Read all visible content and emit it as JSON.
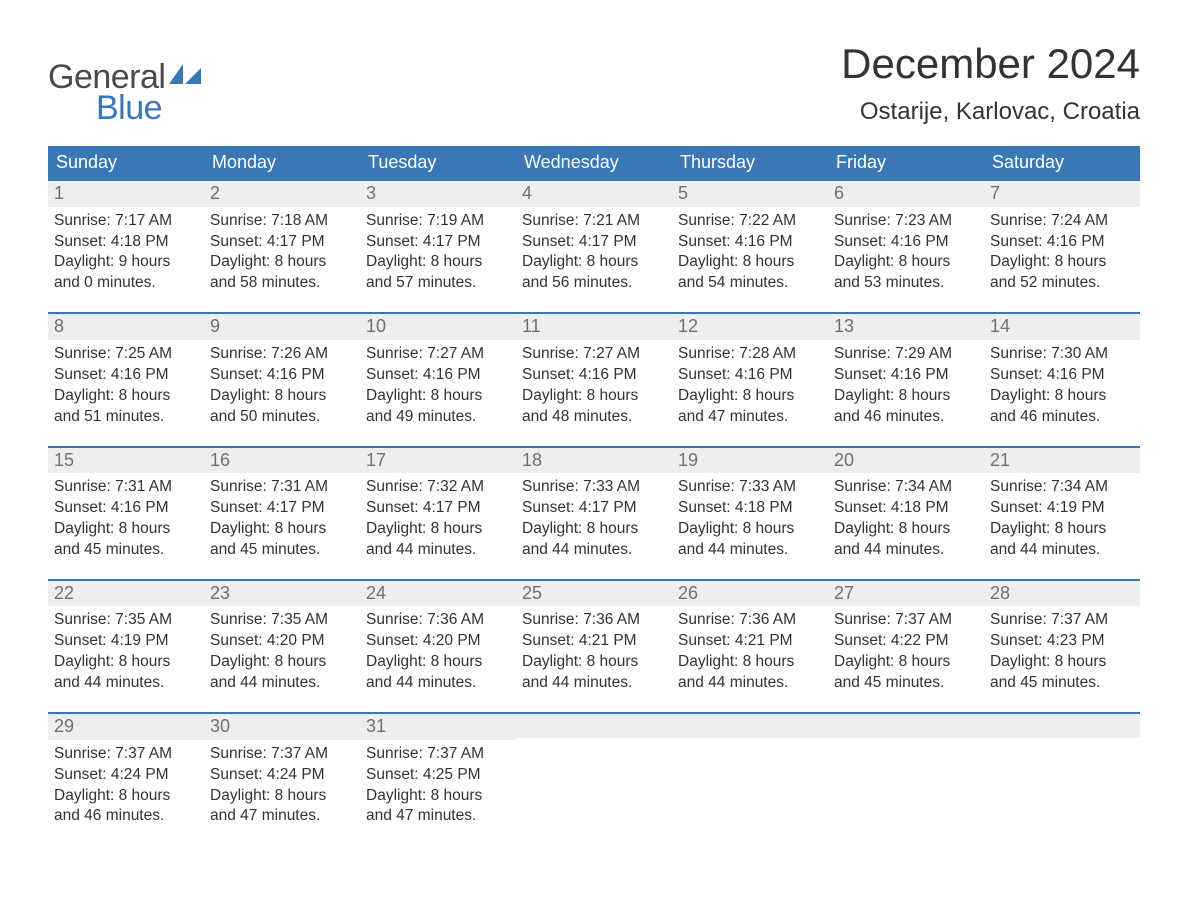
{
  "brand": {
    "word1": "General",
    "word2": "Blue",
    "color_word1": "#4a4a4a",
    "color_word2": "#3a78b5"
  },
  "title": "December 2024",
  "location": "Ostarije, Karlovac, Croatia",
  "colors": {
    "header_bg": "#3a78b5",
    "header_text": "#ffffff",
    "daynum_bg": "#eeeeee",
    "daynum_border": "#3a78b5",
    "daynum_text": "#707070",
    "body_text": "#333333",
    "page_bg": "#ffffff"
  },
  "typography": {
    "title_fontsize": 42,
    "location_fontsize": 24,
    "dayhead_fontsize": 18,
    "daynum_fontsize": 18,
    "body_fontsize": 15.5,
    "font_family": "Arial"
  },
  "day_headers": [
    "Sunday",
    "Monday",
    "Tuesday",
    "Wednesday",
    "Thursday",
    "Friday",
    "Saturday"
  ],
  "weeks": [
    [
      {
        "num": "1",
        "sunrise": "Sunrise: 7:17 AM",
        "sunset": "Sunset: 4:18 PM",
        "dl1": "Daylight: 9 hours",
        "dl2": "and 0 minutes."
      },
      {
        "num": "2",
        "sunrise": "Sunrise: 7:18 AM",
        "sunset": "Sunset: 4:17 PM",
        "dl1": "Daylight: 8 hours",
        "dl2": "and 58 minutes."
      },
      {
        "num": "3",
        "sunrise": "Sunrise: 7:19 AM",
        "sunset": "Sunset: 4:17 PM",
        "dl1": "Daylight: 8 hours",
        "dl2": "and 57 minutes."
      },
      {
        "num": "4",
        "sunrise": "Sunrise: 7:21 AM",
        "sunset": "Sunset: 4:17 PM",
        "dl1": "Daylight: 8 hours",
        "dl2": "and 56 minutes."
      },
      {
        "num": "5",
        "sunrise": "Sunrise: 7:22 AM",
        "sunset": "Sunset: 4:16 PM",
        "dl1": "Daylight: 8 hours",
        "dl2": "and 54 minutes."
      },
      {
        "num": "6",
        "sunrise": "Sunrise: 7:23 AM",
        "sunset": "Sunset: 4:16 PM",
        "dl1": "Daylight: 8 hours",
        "dl2": "and 53 minutes."
      },
      {
        "num": "7",
        "sunrise": "Sunrise: 7:24 AM",
        "sunset": "Sunset: 4:16 PM",
        "dl1": "Daylight: 8 hours",
        "dl2": "and 52 minutes."
      }
    ],
    [
      {
        "num": "8",
        "sunrise": "Sunrise: 7:25 AM",
        "sunset": "Sunset: 4:16 PM",
        "dl1": "Daylight: 8 hours",
        "dl2": "and 51 minutes."
      },
      {
        "num": "9",
        "sunrise": "Sunrise: 7:26 AM",
        "sunset": "Sunset: 4:16 PM",
        "dl1": "Daylight: 8 hours",
        "dl2": "and 50 minutes."
      },
      {
        "num": "10",
        "sunrise": "Sunrise: 7:27 AM",
        "sunset": "Sunset: 4:16 PM",
        "dl1": "Daylight: 8 hours",
        "dl2": "and 49 minutes."
      },
      {
        "num": "11",
        "sunrise": "Sunrise: 7:27 AM",
        "sunset": "Sunset: 4:16 PM",
        "dl1": "Daylight: 8 hours",
        "dl2": "and 48 minutes."
      },
      {
        "num": "12",
        "sunrise": "Sunrise: 7:28 AM",
        "sunset": "Sunset: 4:16 PM",
        "dl1": "Daylight: 8 hours",
        "dl2": "and 47 minutes."
      },
      {
        "num": "13",
        "sunrise": "Sunrise: 7:29 AM",
        "sunset": "Sunset: 4:16 PM",
        "dl1": "Daylight: 8 hours",
        "dl2": "and 46 minutes."
      },
      {
        "num": "14",
        "sunrise": "Sunrise: 7:30 AM",
        "sunset": "Sunset: 4:16 PM",
        "dl1": "Daylight: 8 hours",
        "dl2": "and 46 minutes."
      }
    ],
    [
      {
        "num": "15",
        "sunrise": "Sunrise: 7:31 AM",
        "sunset": "Sunset: 4:16 PM",
        "dl1": "Daylight: 8 hours",
        "dl2": "and 45 minutes."
      },
      {
        "num": "16",
        "sunrise": "Sunrise: 7:31 AM",
        "sunset": "Sunset: 4:17 PM",
        "dl1": "Daylight: 8 hours",
        "dl2": "and 45 minutes."
      },
      {
        "num": "17",
        "sunrise": "Sunrise: 7:32 AM",
        "sunset": "Sunset: 4:17 PM",
        "dl1": "Daylight: 8 hours",
        "dl2": "and 44 minutes."
      },
      {
        "num": "18",
        "sunrise": "Sunrise: 7:33 AM",
        "sunset": "Sunset: 4:17 PM",
        "dl1": "Daylight: 8 hours",
        "dl2": "and 44 minutes."
      },
      {
        "num": "19",
        "sunrise": "Sunrise: 7:33 AM",
        "sunset": "Sunset: 4:18 PM",
        "dl1": "Daylight: 8 hours",
        "dl2": "and 44 minutes."
      },
      {
        "num": "20",
        "sunrise": "Sunrise: 7:34 AM",
        "sunset": "Sunset: 4:18 PM",
        "dl1": "Daylight: 8 hours",
        "dl2": "and 44 minutes."
      },
      {
        "num": "21",
        "sunrise": "Sunrise: 7:34 AM",
        "sunset": "Sunset: 4:19 PM",
        "dl1": "Daylight: 8 hours",
        "dl2": "and 44 minutes."
      }
    ],
    [
      {
        "num": "22",
        "sunrise": "Sunrise: 7:35 AM",
        "sunset": "Sunset: 4:19 PM",
        "dl1": "Daylight: 8 hours",
        "dl2": "and 44 minutes."
      },
      {
        "num": "23",
        "sunrise": "Sunrise: 7:35 AM",
        "sunset": "Sunset: 4:20 PM",
        "dl1": "Daylight: 8 hours",
        "dl2": "and 44 minutes."
      },
      {
        "num": "24",
        "sunrise": "Sunrise: 7:36 AM",
        "sunset": "Sunset: 4:20 PM",
        "dl1": "Daylight: 8 hours",
        "dl2": "and 44 minutes."
      },
      {
        "num": "25",
        "sunrise": "Sunrise: 7:36 AM",
        "sunset": "Sunset: 4:21 PM",
        "dl1": "Daylight: 8 hours",
        "dl2": "and 44 minutes."
      },
      {
        "num": "26",
        "sunrise": "Sunrise: 7:36 AM",
        "sunset": "Sunset: 4:21 PM",
        "dl1": "Daylight: 8 hours",
        "dl2": "and 44 minutes."
      },
      {
        "num": "27",
        "sunrise": "Sunrise: 7:37 AM",
        "sunset": "Sunset: 4:22 PM",
        "dl1": "Daylight: 8 hours",
        "dl2": "and 45 minutes."
      },
      {
        "num": "28",
        "sunrise": "Sunrise: 7:37 AM",
        "sunset": "Sunset: 4:23 PM",
        "dl1": "Daylight: 8 hours",
        "dl2": "and 45 minutes."
      }
    ],
    [
      {
        "num": "29",
        "sunrise": "Sunrise: 7:37 AM",
        "sunset": "Sunset: 4:24 PM",
        "dl1": "Daylight: 8 hours",
        "dl2": "and 46 minutes."
      },
      {
        "num": "30",
        "sunrise": "Sunrise: 7:37 AM",
        "sunset": "Sunset: 4:24 PM",
        "dl1": "Daylight: 8 hours",
        "dl2": "and 47 minutes."
      },
      {
        "num": "31",
        "sunrise": "Sunrise: 7:37 AM",
        "sunset": "Sunset: 4:25 PM",
        "dl1": "Daylight: 8 hours",
        "dl2": "and 47 minutes."
      },
      null,
      null,
      null,
      null
    ]
  ]
}
